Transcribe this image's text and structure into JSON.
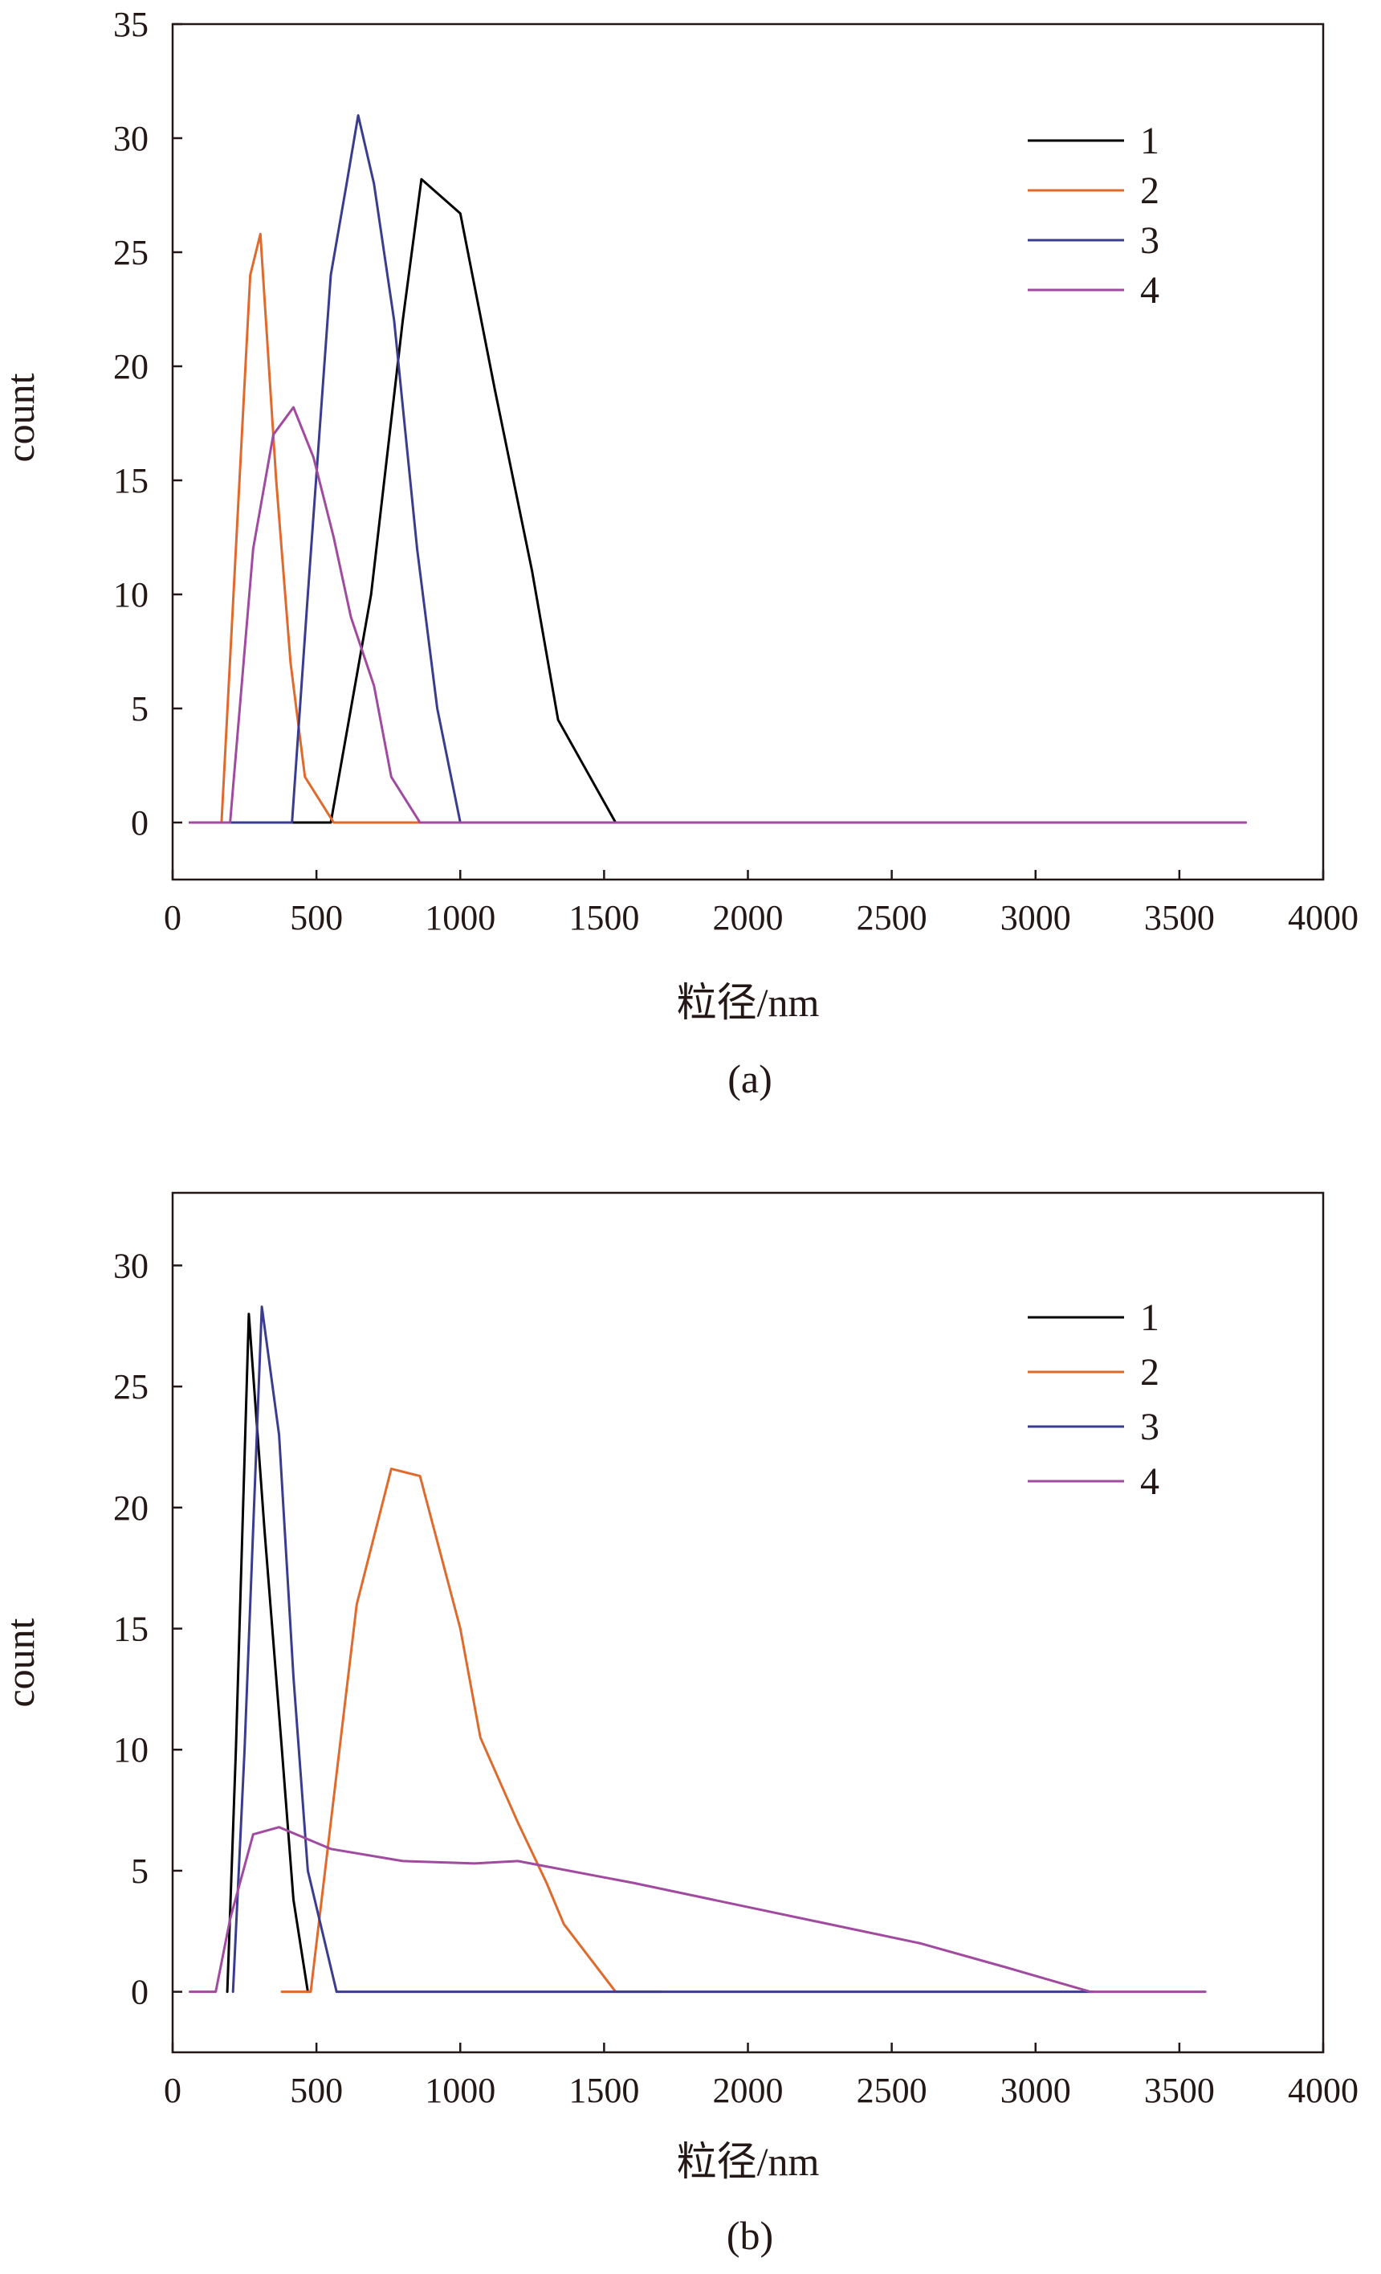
{
  "chart_data": [
    {
      "type": "line",
      "caption": "(a)",
      "xlabel": "粒径/nm",
      "ylabel": "count",
      "xlim": [
        0,
        4000
      ],
      "ylim": [
        -2.5,
        35
      ],
      "xticks": [
        0,
        500,
        1000,
        1500,
        2000,
        2500,
        3000,
        3500,
        4000
      ],
      "yticks": [
        0,
        5,
        10,
        15,
        20,
        25,
        30,
        35
      ],
      "grid": false,
      "legend_position": "top-right",
      "series": [
        {
          "name": "1",
          "color": "#000000",
          "points": [
            [
              60,
              0
            ],
            [
              440,
              0
            ],
            [
              550,
              0
            ],
            [
              620,
              5
            ],
            [
              690,
              10
            ],
            [
              800,
              22
            ],
            [
              865,
              28.2
            ],
            [
              1000,
              26.7
            ],
            [
              1120,
              19
            ],
            [
              1250,
              11
            ],
            [
              1340,
              4.5
            ],
            [
              1540,
              0
            ],
            [
              3730,
              0
            ]
          ]
        },
        {
          "name": "2",
          "color": "#E06A2C",
          "points": [
            [
              60,
              0
            ],
            [
              170,
              0
            ],
            [
              220,
              12
            ],
            [
              270,
              24
            ],
            [
              305,
              25.8
            ],
            [
              360,
              15
            ],
            [
              410,
              7
            ],
            [
              460,
              2
            ],
            [
              560,
              0
            ],
            [
              3730,
              0
            ]
          ]
        },
        {
          "name": "3",
          "color": "#3A3D8F",
          "points": [
            [
              60,
              0
            ],
            [
              415,
              0
            ],
            [
              470,
              10
            ],
            [
              550,
              24
            ],
            [
              605,
              28
            ],
            [
              645,
              31
            ],
            [
              700,
              28
            ],
            [
              770,
              22
            ],
            [
              850,
              12
            ],
            [
              920,
              5
            ],
            [
              1000,
              0
            ],
            [
              3730,
              0
            ]
          ]
        },
        {
          "name": "4",
          "color": "#A04AA0",
          "points": [
            [
              60,
              0
            ],
            [
              200,
              0
            ],
            [
              280,
              12
            ],
            [
              350,
              17
            ],
            [
              420,
              18.2
            ],
            [
              490,
              16
            ],
            [
              560,
              12.5
            ],
            [
              620,
              9
            ],
            [
              700,
              6
            ],
            [
              760,
              2
            ],
            [
              860,
              0
            ],
            [
              3730,
              0
            ]
          ]
        }
      ]
    },
    {
      "type": "line",
      "caption": "(b)",
      "xlabel": "粒径/nm",
      "ylabel": "count",
      "xlim": [
        0,
        4000
      ],
      "ylim": [
        -2.5,
        33
      ],
      "xticks": [
        0,
        500,
        1000,
        1500,
        2000,
        2500,
        3000,
        3500,
        4000
      ],
      "yticks": [
        0,
        5,
        10,
        15,
        20,
        25,
        30
      ],
      "grid": false,
      "legend_position": "top-right",
      "series": [
        {
          "name": "1",
          "color": "#000000",
          "points": [
            [
              190,
              0
            ],
            [
              220,
              10
            ],
            [
              265,
              28
            ],
            [
              320,
              19
            ],
            [
              380,
              10
            ],
            [
              420,
              3.8
            ],
            [
              470,
              0
            ]
          ]
        },
        {
          "name": "2",
          "color": "#E06A2C",
          "points": [
            [
              380,
              0
            ],
            [
              480,
              0
            ],
            [
              560,
              8
            ],
            [
              640,
              16
            ],
            [
              760,
              21.6
            ],
            [
              860,
              21.3
            ],
            [
              1000,
              15
            ],
            [
              1070,
              10.5
            ],
            [
              1200,
              7
            ],
            [
              1300,
              4.5
            ],
            [
              1360,
              2.8
            ],
            [
              1540,
              0
            ],
            [
              1700,
              0
            ]
          ]
        },
        {
          "name": "3",
          "color": "#3A3D8F",
          "points": [
            [
              210,
              0
            ],
            [
              250,
              10
            ],
            [
              310,
              28.3
            ],
            [
              370,
              23
            ],
            [
              420,
              13
            ],
            [
              470,
              5
            ],
            [
              570,
              0
            ],
            [
              3200,
              0
            ]
          ]
        },
        {
          "name": "4",
          "color": "#A04AA0",
          "points": [
            [
              60,
              0
            ],
            [
              150,
              0
            ],
            [
              200,
              3
            ],
            [
              280,
              6.5
            ],
            [
              370,
              6.8
            ],
            [
              550,
              5.9
            ],
            [
              800,
              5.4
            ],
            [
              1050,
              5.3
            ],
            [
              1200,
              5.4
            ],
            [
              1600,
              4.5
            ],
            [
              2000,
              3.5
            ],
            [
              2600,
              2
            ],
            [
              2900,
              1
            ],
            [
              3190,
              0
            ],
            [
              3590,
              0
            ]
          ]
        }
      ]
    }
  ]
}
